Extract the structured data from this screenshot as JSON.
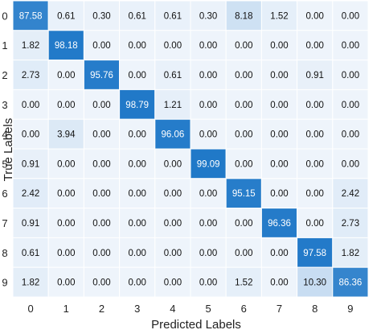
{
  "chart_data": {
    "type": "heatmap",
    "title": "",
    "xlabel": "Predicted Labels",
    "ylabel": "True Labels",
    "x_categories": [
      "0",
      "1",
      "2",
      "3",
      "4",
      "5",
      "6",
      "7",
      "8",
      "9"
    ],
    "y_categories": [
      "0",
      "1",
      "2",
      "3",
      "4",
      "5",
      "6",
      "7",
      "8",
      "9"
    ],
    "values": [
      [
        87.58,
        0.61,
        0.3,
        0.61,
        0.61,
        0.3,
        8.18,
        1.52,
        0.0,
        0.0
      ],
      [
        1.82,
        98.18,
        0.0,
        0.0,
        0.0,
        0.0,
        0.0,
        0.0,
        0.0,
        0.0
      ],
      [
        2.73,
        0.0,
        95.76,
        0.0,
        0.61,
        0.0,
        0.0,
        0.0,
        0.91,
        0.0
      ],
      [
        0.0,
        0.0,
        0.0,
        98.79,
        1.21,
        0.0,
        0.0,
        0.0,
        0.0,
        0.0
      ],
      [
        0.0,
        3.94,
        0.0,
        0.0,
        96.06,
        0.0,
        0.0,
        0.0,
        0.0,
        0.0
      ],
      [
        0.91,
        0.0,
        0.0,
        0.0,
        0.0,
        99.09,
        0.0,
        0.0,
        0.0,
        0.0
      ],
      [
        2.42,
        0.0,
        0.0,
        0.0,
        0.0,
        0.0,
        95.15,
        0.0,
        0.0,
        2.42
      ],
      [
        0.91,
        0.0,
        0.0,
        0.0,
        0.0,
        0.0,
        0.0,
        96.36,
        0.0,
        2.73
      ],
      [
        0.61,
        0.0,
        0.0,
        0.0,
        0.0,
        0.0,
        0.0,
        0.0,
        97.58,
        1.82
      ],
      [
        1.82,
        0.0,
        0.0,
        0.0,
        0.0,
        0.0,
        1.52,
        0.0,
        10.3,
        86.36
      ]
    ],
    "value_range": [
      0,
      100
    ],
    "colors": {
      "low": "#eef4fb",
      "high": "#1f78c8",
      "text_dark": "#111111",
      "text_light": "#ffffff",
      "cell_border": "#ffffff"
    }
  }
}
